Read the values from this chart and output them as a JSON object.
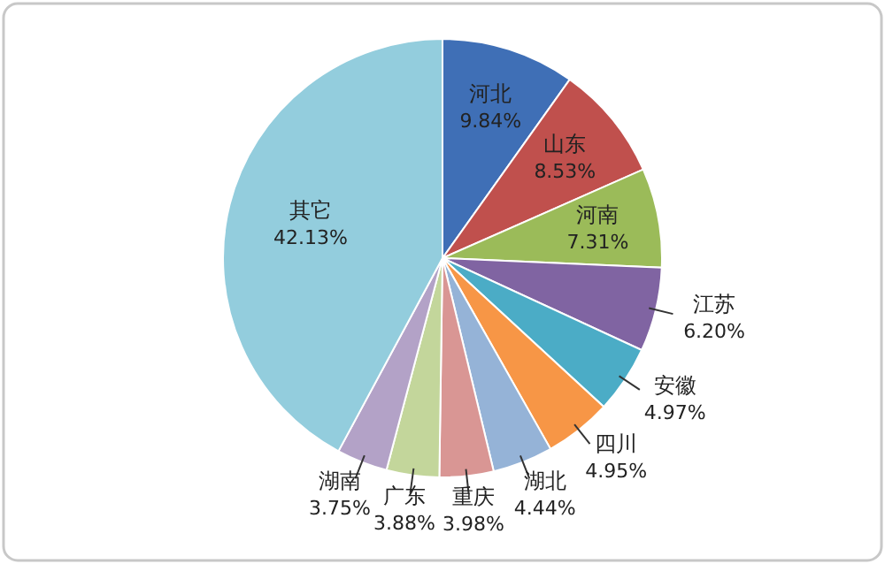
{
  "chart_data": {
    "type": "pie",
    "categories": [
      "河北",
      "山东",
      "河南",
      "江苏",
      "安徽",
      "四川",
      "湖北",
      "重庆",
      "广东",
      "湖南",
      "其它"
    ],
    "values": [
      9.84,
      8.53,
      7.31,
      6.2,
      4.97,
      4.95,
      4.44,
      3.98,
      3.88,
      3.75,
      42.13
    ],
    "value_labels": [
      "9.84%",
      "8.53%",
      "7.31%",
      "6.20%",
      "4.97%",
      "4.95%",
      "4.44%",
      "3.98%",
      "3.88%",
      "3.75%",
      "42.13%"
    ],
    "colors": [
      "#3f6fb6",
      "#c0504d",
      "#9bbb59",
      "#8064a2",
      "#4bacc6",
      "#f79646",
      "#95b3d7",
      "#d99694",
      "#c3d69b",
      "#b3a2c7",
      "#93cddd"
    ]
  }
}
